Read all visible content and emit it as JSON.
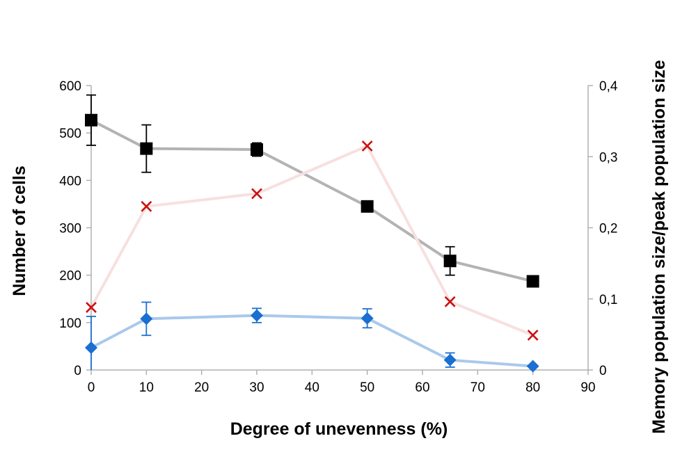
{
  "chart_data": {
    "type": "line",
    "title": "",
    "xlabel": "Degree of unevenness (%)",
    "ylabel": "Number of cells",
    "y2label": "Memory population size/peak population size",
    "xlim": [
      0,
      90
    ],
    "ylim": [
      0,
      600
    ],
    "y2lim": [
      0,
      0.4
    ],
    "x_ticks": [
      0,
      10,
      20,
      30,
      40,
      50,
      60,
      70,
      80,
      90
    ],
    "y_ticks": [
      0,
      100,
      200,
      300,
      400,
      500,
      600
    ],
    "y2_ticks": [
      0,
      0.1,
      0.2,
      0.3,
      0.4
    ],
    "y2_tick_labels": [
      "0",
      "0,1",
      "0,2",
      "0,3",
      "0,4"
    ],
    "grid": false,
    "legend": "none",
    "series": [
      {
        "axis": "left",
        "marker": "square",
        "color": "#000000",
        "line_color": "#b3b3b3",
        "x": [
          0,
          10,
          30,
          50,
          65,
          80
        ],
        "y": [
          527,
          467,
          465,
          345,
          230,
          187
        ],
        "err": [
          53,
          50,
          14,
          0,
          30,
          0
        ]
      },
      {
        "axis": "left",
        "marker": "diamond",
        "color": "#1a6fd1",
        "line_color": "#a9c9ec",
        "x": [
          0,
          10,
          30,
          50,
          65,
          80
        ],
        "y": [
          47,
          108,
          115,
          109,
          21,
          8
        ],
        "err": [
          66,
          35,
          15,
          20,
          15,
          0
        ]
      },
      {
        "axis": "right",
        "marker": "x",
        "color": "#cc1111",
        "line_color": "#f8e0e0",
        "x": [
          0,
          10,
          30,
          50,
          65,
          80
        ],
        "y": [
          0.088,
          0.23,
          0.248,
          0.315,
          0.096,
          0.049
        ]
      }
    ]
  }
}
